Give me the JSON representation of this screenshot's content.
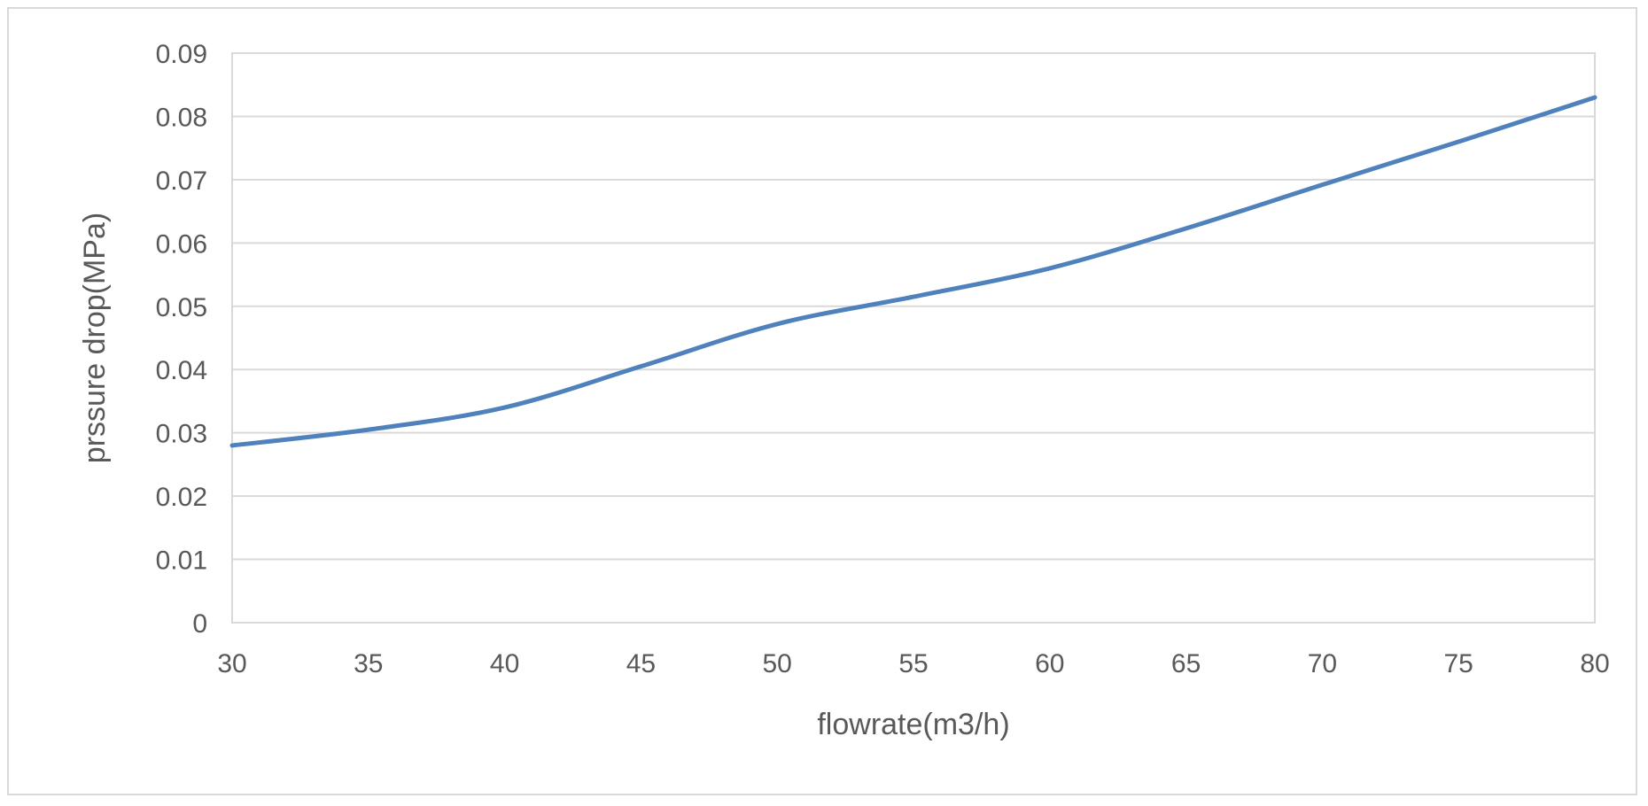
{
  "chart_data": {
    "type": "line",
    "title": "",
    "xlabel": "flowrate(m3/h)",
    "ylabel": "prssure drop(MPa)",
    "xlim": [
      30,
      80
    ],
    "ylim": [
      0,
      0.09
    ],
    "grid": "horizontal",
    "legend": "none",
    "x_ticks": [
      "30",
      "35",
      "40",
      "45",
      "50",
      "55",
      "60",
      "65",
      "70",
      "75",
      "80"
    ],
    "y_ticks": [
      "0",
      "0.01",
      "0.02",
      "0.03",
      "0.04",
      "0.05",
      "0.06",
      "0.07",
      "0.08",
      "0.09"
    ],
    "x_tick_values": [
      30,
      35,
      40,
      45,
      50,
      55,
      60,
      65,
      70,
      75,
      80
    ],
    "y_tick_values": [
      0,
      0.01,
      0.02,
      0.03,
      0.04,
      0.05,
      0.06,
      0.07,
      0.08,
      0.09
    ],
    "series": [
      {
        "color": "#4f81bd",
        "x": [
          30,
          35,
          40,
          45,
          50,
          55,
          60,
          65,
          70,
          75,
          80
        ],
        "y": [
          0.028,
          0.0305,
          0.034,
          0.0405,
          0.0472,
          0.0515,
          0.056,
          0.0623,
          0.0692,
          0.076,
          0.083
        ]
      }
    ]
  }
}
